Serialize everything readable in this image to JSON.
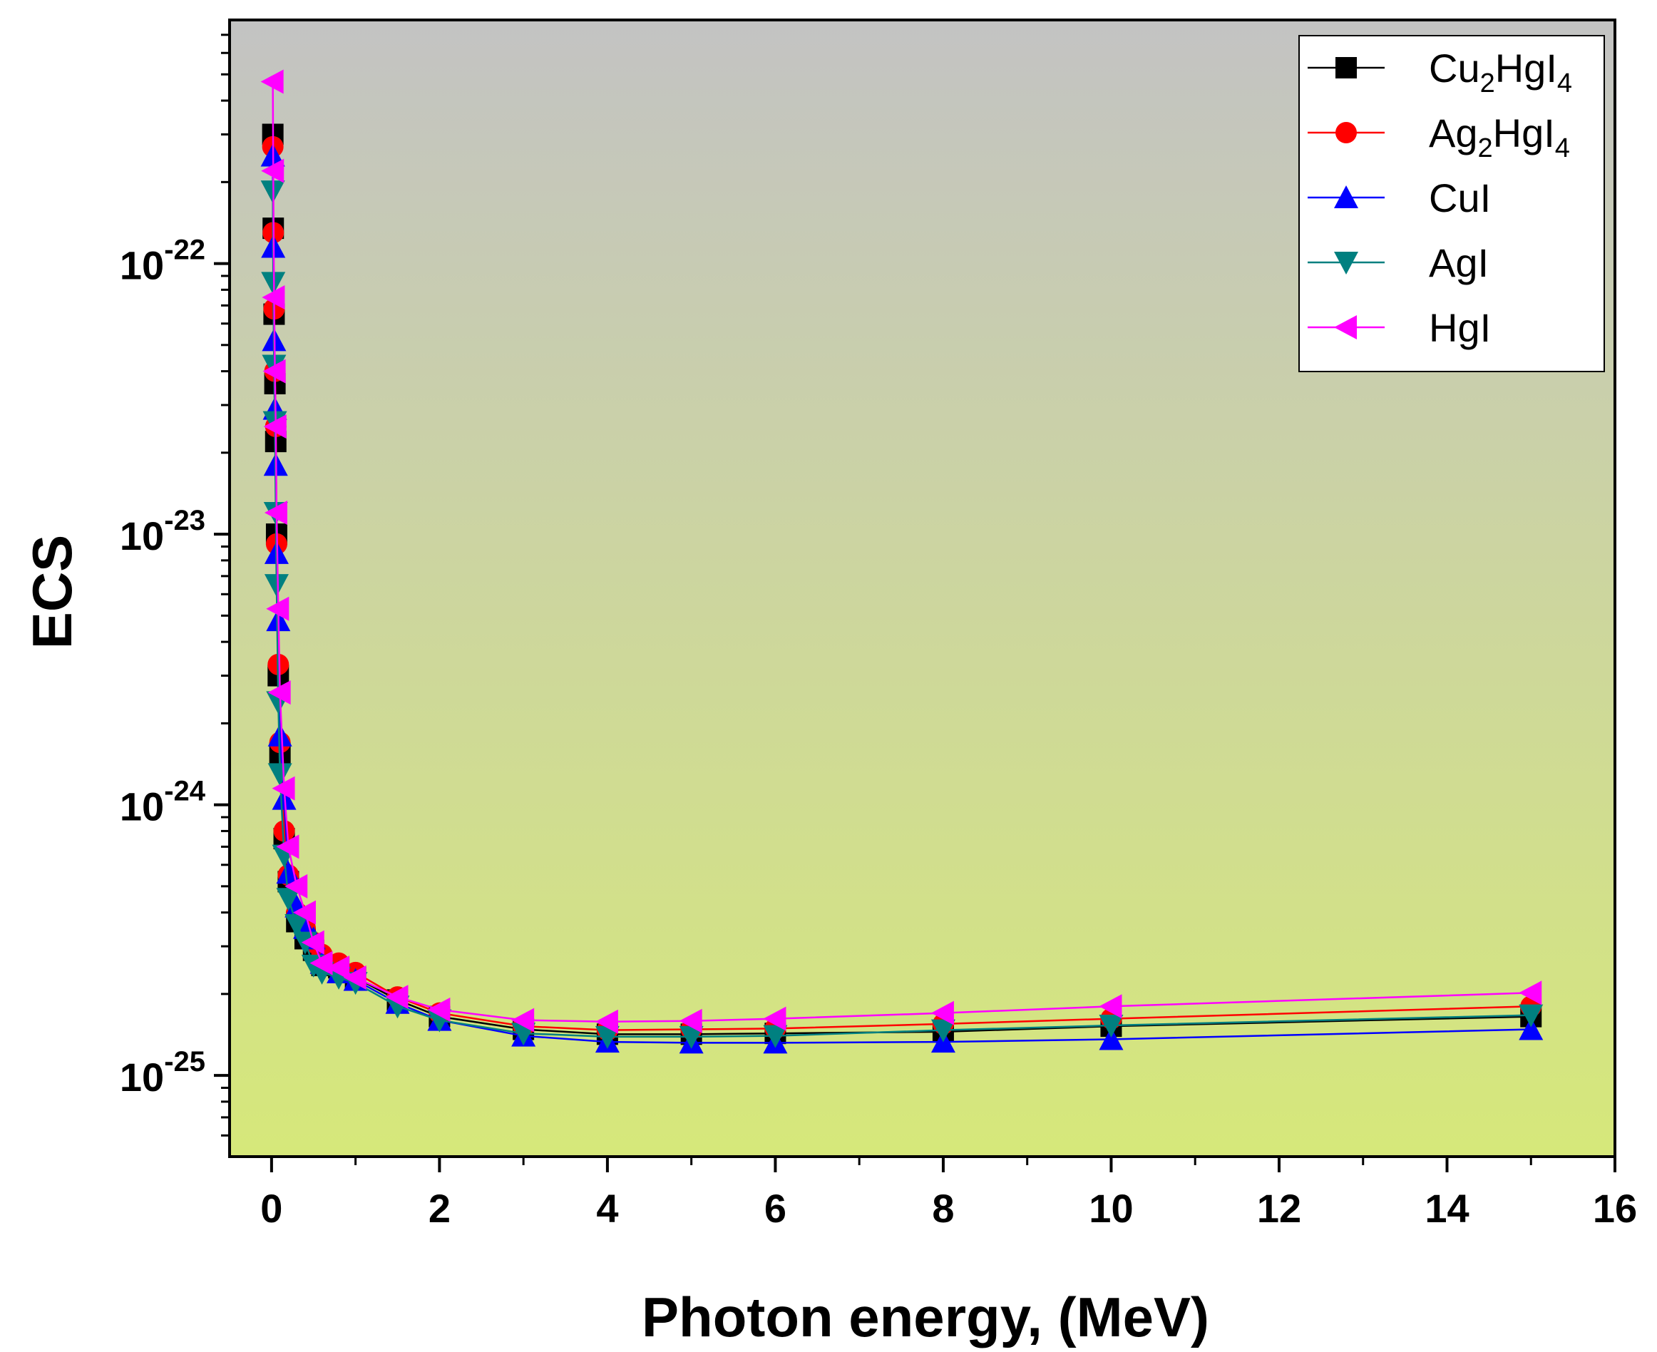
{
  "chart_data": {
    "type": "line",
    "title": "",
    "xlabel": "Photon energy, (MeV)",
    "ylabel": "ECS",
    "xlim": [
      -0.5,
      16
    ],
    "ylim_log10": [
      -25.3,
      -21.1
    ],
    "yscale": "log",
    "x_ticks": [
      "0",
      "2",
      "4",
      "6",
      "8",
      "10",
      "12",
      "14",
      "16"
    ],
    "y_ticks": [
      {
        "base": "10",
        "exp": "-22"
      },
      {
        "base": "10",
        "exp": "-23"
      },
      {
        "base": "10",
        "exp": "-24"
      },
      {
        "base": "10",
        "exp": "-25"
      }
    ],
    "background_gradient": {
      "top": "#c3c3c3",
      "bottom": "#d6e87a"
    },
    "legend_position": "top-right",
    "x": [
      0.015,
      0.02,
      0.03,
      0.04,
      0.05,
      0.06,
      0.08,
      0.1,
      0.15,
      0.2,
      0.3,
      0.4,
      0.5,
      0.6,
      0.8,
      1.0,
      1.5,
      2,
      3,
      4,
      5,
      6,
      8,
      10,
      15
    ],
    "series": [
      {
        "name": "Cu2HgI4",
        "legend": {
          "pre": "Cu",
          "sub1": "2",
          "mid": "HgI",
          "sub2": "4"
        },
        "color": "#000000",
        "marker": "square",
        "values": [
          3e-22,
          1.35e-22,
          6.5e-23,
          3.6e-23,
          2.2e-23,
          1e-23,
          3e-24,
          1.55e-24,
          7.5e-25,
          5.2e-25,
          3.7e-25,
          3.2e-25,
          2.9e-25,
          2.55e-25,
          2.5e-25,
          2.3e-25,
          1.9e-25,
          1.65e-25,
          1.48e-25,
          1.42e-25,
          1.42e-25,
          1.43e-25,
          1.45e-25,
          1.52e-25,
          1.65e-25
        ]
      },
      {
        "name": "Ag2HgI4",
        "legend": {
          "pre": "Ag",
          "sub1": "2",
          "mid": "HgI",
          "sub2": "4"
        },
        "color": "#ff0000",
        "marker": "circle",
        "values": [
          2.7e-22,
          1.3e-22,
          6.8e-23,
          4e-23,
          2.5e-23,
          9.2e-24,
          3.3e-24,
          1.7e-24,
          8e-25,
          5.5e-25,
          4e-25,
          3.5e-25,
          3.1e-25,
          2.8e-25,
          2.6e-25,
          2.4e-25,
          1.95e-25,
          1.7e-25,
          1.52e-25,
          1.47e-25,
          1.48e-25,
          1.49e-25,
          1.55e-25,
          1.62e-25,
          1.8e-25
        ]
      },
      {
        "name": "CuI",
        "legend": {
          "pre": "CuI",
          "sub1": "",
          "mid": "",
          "sub2": ""
        },
        "color": "#0000ff",
        "marker": "triangle-up",
        "values": [
          2.5e-22,
          1.15e-22,
          5.2e-23,
          2.9e-23,
          1.8e-23,
          8.5e-24,
          4.8e-24,
          1.8e-24,
          1.05e-24,
          5.6e-25,
          4.2e-25,
          3.5e-25,
          3.2e-25,
          2.6e-25,
          2.4e-25,
          2.25e-25,
          1.85e-25,
          1.6e-25,
          1.4e-25,
          1.33e-25,
          1.32e-25,
          1.32e-25,
          1.33e-25,
          1.36e-25,
          1.48e-25
        ]
      },
      {
        "name": "AgI",
        "legend": {
          "pre": "AgI",
          "sub1": "",
          "mid": "",
          "sub2": ""
        },
        "color": "#008080",
        "marker": "triangle-down",
        "values": [
          1.85e-22,
          8.5e-23,
          4.2e-23,
          2.6e-23,
          1.2e-23,
          6.5e-24,
          2.4e-24,
          1.3e-24,
          6.5e-25,
          4.5e-25,
          3.6e-25,
          3.1e-25,
          2.55e-25,
          2.4e-25,
          2.3e-25,
          2.2e-25,
          1.8e-25,
          1.6e-25,
          1.43e-25,
          1.39e-25,
          1.39e-25,
          1.4e-25,
          1.47e-25,
          1.53e-25,
          1.67e-25
        ]
      },
      {
        "name": "HgI",
        "legend": {
          "pre": "HgI",
          "sub1": "",
          "mid": "",
          "sub2": ""
        },
        "color": "#ff00ff",
        "marker": "triangle-left",
        "values": [
          4.7e-22,
          2.2e-22,
          7.5e-23,
          4e-23,
          2.5e-23,
          1.2e-23,
          5.3e-24,
          2.6e-24,
          1.15e-24,
          7e-25,
          5e-25,
          4e-25,
          3.1e-25,
          2.6e-25,
          2.5e-25,
          2.3e-25,
          1.95e-25,
          1.75e-25,
          1.6e-25,
          1.58e-25,
          1.59e-25,
          1.62e-25,
          1.7e-25,
          1.8e-25,
          2.02e-25
        ]
      }
    ]
  }
}
